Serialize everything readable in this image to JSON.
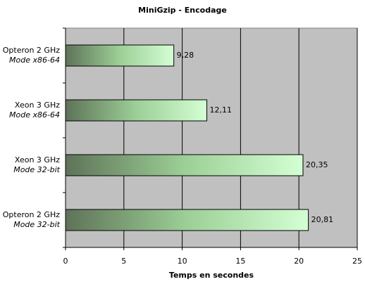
{
  "chart_data": {
    "type": "hbar",
    "title": "MiniGzip - Encodage",
    "x_label": "Temps en secondes",
    "categories": [
      [
        "Opteron 2 GHz",
        "Mode x86-64"
      ],
      [
        "Xeon 3 GHz",
        "Mode x86-64"
      ],
      [
        "Xeon 3 GHz",
        "Mode 32-bit"
      ],
      [
        "Opteron 2 GHz",
        "Mode 32-bit"
      ]
    ],
    "values": [
      9.28,
      12.11,
      20.35,
      20.81
    ],
    "value_labels": [
      "9,28",
      "12,11",
      "20,35",
      "20,81"
    ],
    "color": "#ccffcc",
    "xlim": [
      0,
      25
    ],
    "xticks": [
      0,
      5,
      10,
      15,
      20,
      25
    ],
    "grid": true
  }
}
